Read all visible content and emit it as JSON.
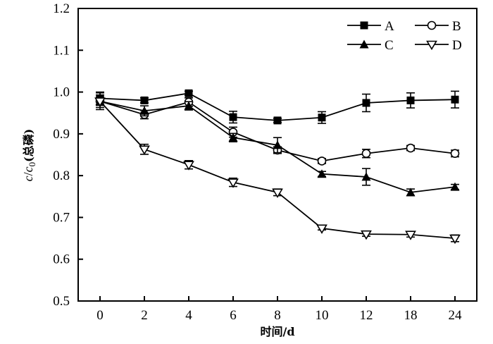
{
  "chart_data": {
    "type": "line",
    "title": "",
    "xlabel": "时间/d",
    "ylabel": {
      "var": "c",
      "sep": "/",
      "var2": "c",
      "sub": "0",
      "suffix": "(总磷)"
    },
    "categories": [
      "0",
      "2",
      "4",
      "6",
      "8",
      "10",
      "12",
      "18",
      "24"
    ],
    "ylim": [
      0.5,
      1.2
    ],
    "yticks": [
      "0.5",
      "0.6",
      "0.7",
      "0.8",
      "0.9",
      "1.0",
      "1.1",
      "1.2"
    ],
    "ytick_values": [
      0.5,
      0.6,
      0.7,
      0.8,
      0.9,
      1.0,
      1.1,
      1.2
    ],
    "grid": false,
    "legend_position": "top-right",
    "series": [
      {
        "name": "A",
        "marker": "square-filled",
        "values": [
          0.985,
          0.98,
          0.997,
          0.94,
          0.932,
          0.939,
          0.974,
          0.98,
          0.982
        ],
        "errors": [
          0.015,
          0.006,
          0.005,
          0.014,
          0.005,
          0.014,
          0.021,
          0.018,
          0.02
        ]
      },
      {
        "name": "B",
        "marker": "circle-open",
        "values": [
          0.978,
          0.946,
          0.976,
          0.904,
          0.861,
          0.835,
          0.853,
          0.866,
          0.853
        ],
        "errors": [
          0.02,
          0.01,
          0.01,
          0.012,
          0.008,
          0.006,
          0.01,
          0.006,
          0.008
        ]
      },
      {
        "name": "C",
        "marker": "triangle-up-filled",
        "values": [
          0.978,
          0.955,
          0.967,
          0.891,
          0.873,
          0.804,
          0.797,
          0.76,
          0.773
        ],
        "errors": [
          0.015,
          0.012,
          0.01,
          0.01,
          0.018,
          0.006,
          0.02,
          0.008,
          0.006
        ]
      },
      {
        "name": "D",
        "marker": "triangle-down-open",
        "values": [
          0.978,
          0.863,
          0.826,
          0.784,
          0.76,
          0.674,
          0.66,
          0.659,
          0.65
        ],
        "errors": [
          0.01,
          0.012,
          0.01,
          0.01,
          0.008,
          0.004,
          0.005,
          0.006,
          0.008
        ]
      }
    ]
  }
}
